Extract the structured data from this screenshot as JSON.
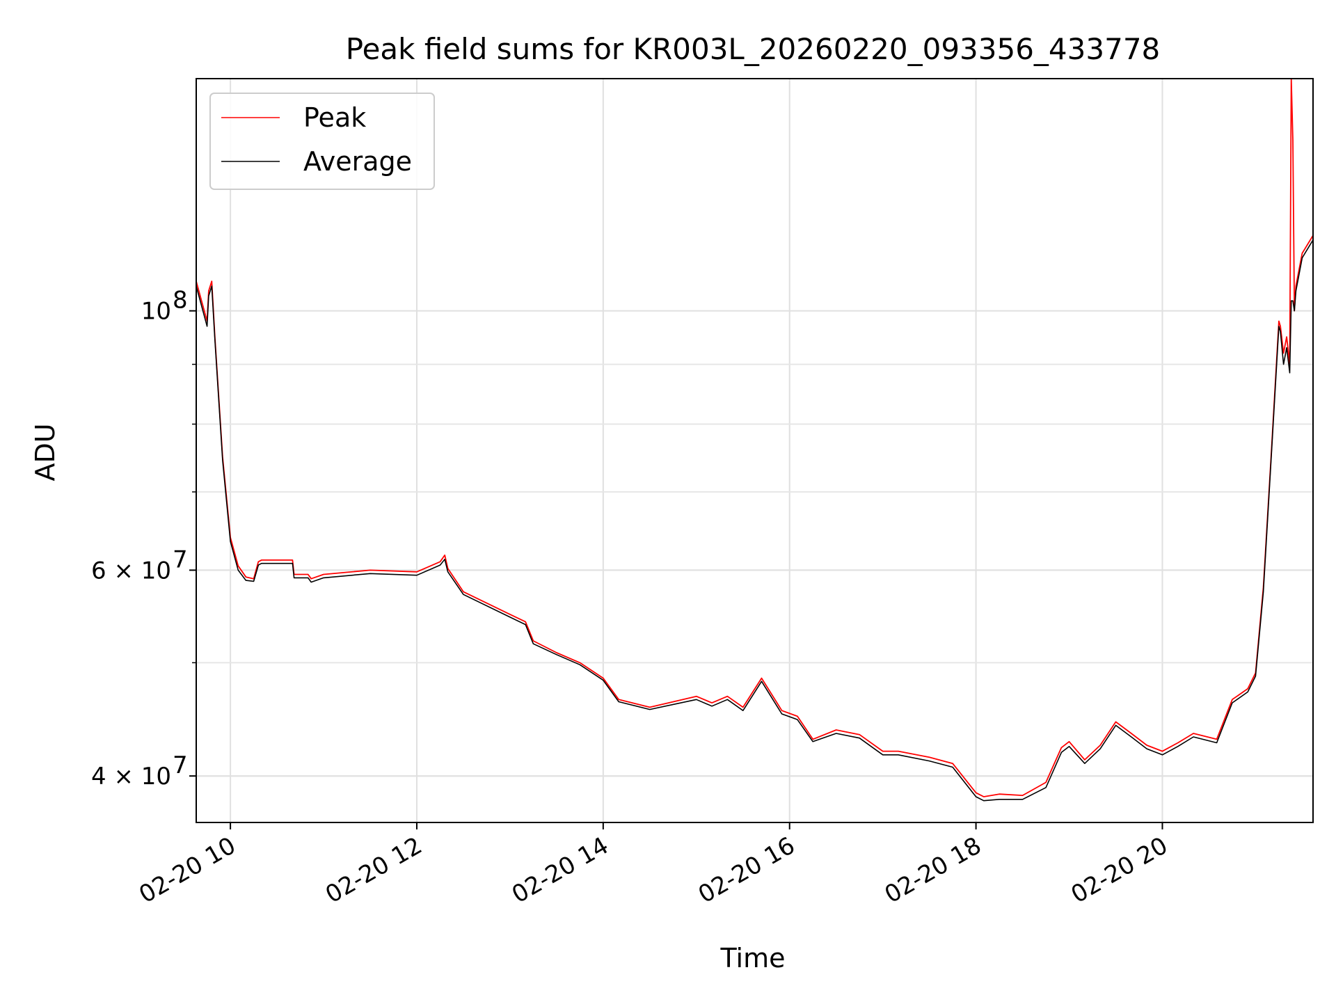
{
  "chart_data": {
    "type": "line",
    "title": "Peak field sums for KR003L_20260220_093356_433778",
    "xlabel": "Time",
    "ylabel": "ADU",
    "yscale": "log",
    "xlim": [
      "2026-02-20 09:38",
      "2026-02-20 21:37"
    ],
    "ylim": [
      36500000,
      158000000
    ],
    "grid": true,
    "legend_position": "top-left",
    "x_ticks": [
      "02-20 10",
      "02-20 12",
      "02-20 14",
      "02-20 16",
      "02-20 18",
      "02-20 20"
    ],
    "y_ticks": [
      {
        "value": 40000000,
        "label": "4 × 10",
        "exp": "7"
      },
      {
        "value": 60000000,
        "label": "6 × 10",
        "exp": "7"
      },
      {
        "value": 100000000,
        "label": "10",
        "exp": "8"
      }
    ],
    "series": [
      {
        "name": "Peak",
        "color": "#ff0000",
        "x": [
          "2026-02-20 09:38",
          "2026-02-20 09:45",
          "2026-02-20 09:46",
          "2026-02-20 09:48",
          "2026-02-20 09:50",
          "2026-02-20 09:55",
          "2026-02-20 10:00",
          "2026-02-20 10:05",
          "2026-02-20 10:10",
          "2026-02-20 10:15",
          "2026-02-20 10:18",
          "2026-02-20 10:20",
          "2026-02-20 10:40",
          "2026-02-20 10:41",
          "2026-02-20 10:50",
          "2026-02-20 10:52",
          "2026-02-20 11:00",
          "2026-02-20 11:30",
          "2026-02-20 12:00",
          "2026-02-20 12:15",
          "2026-02-20 12:18",
          "2026-02-20 12:20",
          "2026-02-20 12:30",
          "2026-02-20 13:00",
          "2026-02-20 13:10",
          "2026-02-20 13:15",
          "2026-02-20 13:30",
          "2026-02-20 13:45",
          "2026-02-20 14:00",
          "2026-02-20 14:10",
          "2026-02-20 14:30",
          "2026-02-20 15:00",
          "2026-02-20 15:10",
          "2026-02-20 15:20",
          "2026-02-20 15:30",
          "2026-02-20 15:42",
          "2026-02-20 15:55",
          "2026-02-20 16:05",
          "2026-02-20 16:15",
          "2026-02-20 16:30",
          "2026-02-20 16:45",
          "2026-02-20 17:00",
          "2026-02-20 17:10",
          "2026-02-20 17:30",
          "2026-02-20 17:45",
          "2026-02-20 18:00",
          "2026-02-20 18:05",
          "2026-02-20 18:15",
          "2026-02-20 18:30",
          "2026-02-20 18:45",
          "2026-02-20 18:55",
          "2026-02-20 19:00",
          "2026-02-20 19:10",
          "2026-02-20 19:20",
          "2026-02-20 19:30",
          "2026-02-20 19:40",
          "2026-02-20 19:50",
          "2026-02-20 20:00",
          "2026-02-20 20:10",
          "2026-02-20 20:20",
          "2026-02-20 20:35",
          "2026-02-20 20:45",
          "2026-02-20 20:55",
          "2026-02-20 21:00",
          "2026-02-20 21:05",
          "2026-02-20 21:10",
          "2026-02-20 21:15",
          "2026-02-20 21:16",
          "2026-02-20 21:18",
          "2026-02-20 21:20",
          "2026-02-20 21:22",
          "2026-02-20 21:23",
          "2026-02-20 21:24",
          "2026-02-20 21:25",
          "2026-02-20 21:26",
          "2026-02-20 21:30",
          "2026-02-20 21:37"
        ],
        "values": [
          106000000,
          98000000,
          104000000,
          106000000,
          95000000,
          75000000,
          64000000,
          60500000,
          59200000,
          59000000,
          61000000,
          61200000,
          61200000,
          59500000,
          59500000,
          59000000,
          59500000,
          60000000,
          59800000,
          61000000,
          61800000,
          60200000,
          57500000,
          55000000,
          54200000,
          52200000,
          51000000,
          50000000,
          48500000,
          46500000,
          45800000,
          46800000,
          46200000,
          46800000,
          45800000,
          48500000,
          45500000,
          45000000,
          43000000,
          43800000,
          43400000,
          42000000,
          42000000,
          41500000,
          41000000,
          38700000,
          38400000,
          38600000,
          38500000,
          39500000,
          42300000,
          42800000,
          41300000,
          42500000,
          44500000,
          43500000,
          42500000,
          42000000,
          42700000,
          43500000,
          43000000,
          46500000,
          47500000,
          49000000,
          58000000,
          75000000,
          98000000,
          97000000,
          92000000,
          95000000,
          90000000,
          158000000,
          140000000,
          100000000,
          105000000,
          112000000,
          116000000
        ]
      },
      {
        "name": "Average",
        "color": "#000000",
        "x": [
          "2026-02-20 09:38",
          "2026-02-20 09:45",
          "2026-02-20 09:46",
          "2026-02-20 09:48",
          "2026-02-20 09:50",
          "2026-02-20 09:55",
          "2026-02-20 10:00",
          "2026-02-20 10:05",
          "2026-02-20 10:10",
          "2026-02-20 10:15",
          "2026-02-20 10:18",
          "2026-02-20 10:20",
          "2026-02-20 10:40",
          "2026-02-20 10:41",
          "2026-02-20 10:50",
          "2026-02-20 10:52",
          "2026-02-20 11:00",
          "2026-02-20 11:30",
          "2026-02-20 12:00",
          "2026-02-20 12:15",
          "2026-02-20 12:18",
          "2026-02-20 12:20",
          "2026-02-20 12:30",
          "2026-02-20 13:00",
          "2026-02-20 13:10",
          "2026-02-20 13:15",
          "2026-02-20 13:30",
          "2026-02-20 13:45",
          "2026-02-20 14:00",
          "2026-02-20 14:10",
          "2026-02-20 14:30",
          "2026-02-20 15:00",
          "2026-02-20 15:10",
          "2026-02-20 15:20",
          "2026-02-20 15:30",
          "2026-02-20 15:42",
          "2026-02-20 15:55",
          "2026-02-20 16:05",
          "2026-02-20 16:15",
          "2026-02-20 16:30",
          "2026-02-20 16:45",
          "2026-02-20 17:00",
          "2026-02-20 17:10",
          "2026-02-20 17:30",
          "2026-02-20 17:45",
          "2026-02-20 18:00",
          "2026-02-20 18:05",
          "2026-02-20 18:15",
          "2026-02-20 18:30",
          "2026-02-20 18:45",
          "2026-02-20 18:55",
          "2026-02-20 19:00",
          "2026-02-20 19:10",
          "2026-02-20 19:20",
          "2026-02-20 19:30",
          "2026-02-20 19:40",
          "2026-02-20 19:50",
          "2026-02-20 20:00",
          "2026-02-20 20:10",
          "2026-02-20 20:20",
          "2026-02-20 20:35",
          "2026-02-20 20:45",
          "2026-02-20 20:55",
          "2026-02-20 21:00",
          "2026-02-20 21:05",
          "2026-02-20 21:10",
          "2026-02-20 21:15",
          "2026-02-20 21:16",
          "2026-02-20 21:18",
          "2026-02-20 21:20",
          "2026-02-20 21:22",
          "2026-02-20 21:23",
          "2026-02-20 21:24",
          "2026-02-20 21:25",
          "2026-02-20 21:26",
          "2026-02-20 21:30",
          "2026-02-20 21:37"
        ],
        "values": [
          105000000,
          97000000,
          103000000,
          105000000,
          94500000,
          74500000,
          63500000,
          60000000,
          58800000,
          58700000,
          60600000,
          60800000,
          60800000,
          59100000,
          59100000,
          58600000,
          59100000,
          59600000,
          59400000,
          60600000,
          61300000,
          59800000,
          57200000,
          54700000,
          53900000,
          51900000,
          50800000,
          49800000,
          48300000,
          46300000,
          45600000,
          46500000,
          45900000,
          46500000,
          45500000,
          48200000,
          45200000,
          44700000,
          42800000,
          43500000,
          43100000,
          41700000,
          41700000,
          41200000,
          40700000,
          38400000,
          38100000,
          38200000,
          38200000,
          39100000,
          41900000,
          42400000,
          41000000,
          42200000,
          44200000,
          43200000,
          42200000,
          41700000,
          42400000,
          43200000,
          42700000,
          46200000,
          47200000,
          48700000,
          57500000,
          74500000,
          97000000,
          96000000,
          90000000,
          93000000,
          88500000,
          102000000,
          102000000,
          100000000,
          104000000,
          111000000,
          115000000
        ]
      }
    ]
  }
}
